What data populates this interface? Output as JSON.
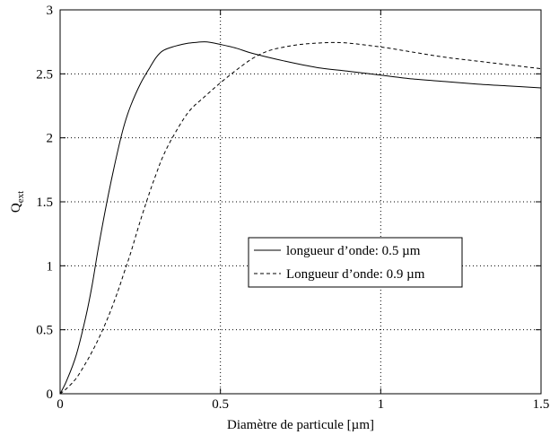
{
  "chart_data": {
    "type": "line",
    "title": "",
    "xlabel": "Diamètre de particule [µm]",
    "ylabel_main": "Q",
    "ylabel_sub": "ext",
    "xlim": [
      0,
      1.5
    ],
    "ylim": [
      0,
      3
    ],
    "x_ticks": [
      {
        "value": 0,
        "label": "0"
      },
      {
        "value": 0.5,
        "label": "0.5"
      },
      {
        "value": 1,
        "label": "1"
      },
      {
        "value": 1.5,
        "label": "1.5"
      }
    ],
    "y_ticks": [
      {
        "value": 0,
        "label": "0"
      },
      {
        "value": 0.5,
        "label": "0.5"
      },
      {
        "value": 1,
        "label": "1"
      },
      {
        "value": 1.5,
        "label": "1.5"
      },
      {
        "value": 2,
        "label": "2"
      },
      {
        "value": 2.5,
        "label": "2.5"
      },
      {
        "value": 3,
        "label": "3"
      }
    ],
    "grid": "dotted",
    "legend_position": "center-right",
    "series": [
      {
        "name": "longueur d’onde: 0.5 µm",
        "style": "solid",
        "color": "#000000",
        "x": [
          0,
          0.02,
          0.05,
          0.08,
          0.1,
          0.12,
          0.15,
          0.18,
          0.2,
          0.22,
          0.25,
          0.28,
          0.3,
          0.32,
          0.35,
          0.38,
          0.4,
          0.42,
          0.45,
          0.47,
          0.5,
          0.55,
          0.6,
          0.7,
          0.8,
          0.9,
          1.0,
          1.1,
          1.2,
          1.3,
          1.4,
          1.5
        ],
        "y": [
          0,
          0.1,
          0.3,
          0.6,
          0.85,
          1.15,
          1.55,
          1.9,
          2.1,
          2.25,
          2.42,
          2.55,
          2.63,
          2.68,
          2.71,
          2.73,
          2.74,
          2.745,
          2.75,
          2.745,
          2.73,
          2.7,
          2.66,
          2.6,
          2.55,
          2.52,
          2.49,
          2.46,
          2.44,
          2.42,
          2.405,
          2.39
        ]
      },
      {
        "name": "Longueur d’onde: 0.9 µm",
        "style": "dashed",
        "color": "#000000",
        "x": [
          0,
          0.02,
          0.05,
          0.08,
          0.1,
          0.12,
          0.15,
          0.18,
          0.2,
          0.22,
          0.25,
          0.28,
          0.3,
          0.32,
          0.35,
          0.4,
          0.45,
          0.5,
          0.55,
          0.6,
          0.65,
          0.7,
          0.75,
          0.8,
          0.85,
          0.9,
          1.0,
          1.1,
          1.2,
          1.3,
          1.4,
          1.5
        ],
        "y": [
          0,
          0.04,
          0.12,
          0.24,
          0.33,
          0.43,
          0.6,
          0.8,
          0.95,
          1.1,
          1.35,
          1.58,
          1.72,
          1.85,
          2.0,
          2.2,
          2.32,
          2.43,
          2.53,
          2.62,
          2.68,
          2.71,
          2.73,
          2.74,
          2.745,
          2.74,
          2.71,
          2.67,
          2.63,
          2.6,
          2.57,
          2.54
        ]
      }
    ]
  }
}
